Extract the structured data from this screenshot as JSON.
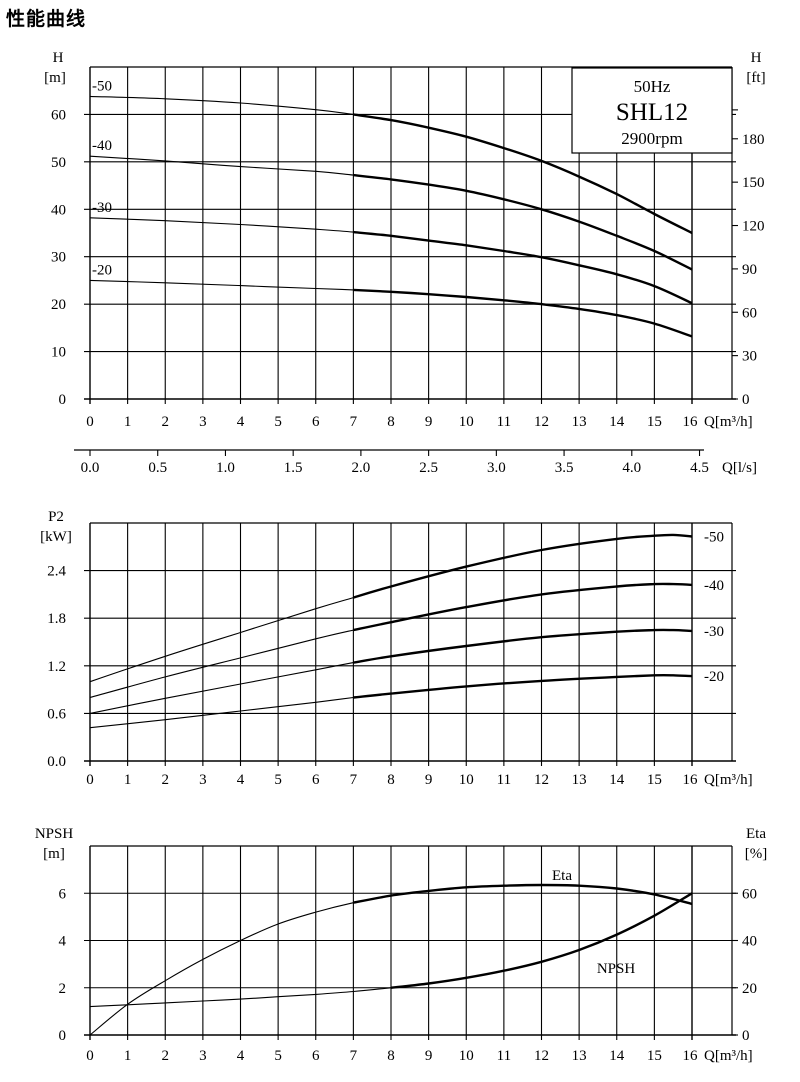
{
  "page_title": "性能曲线",
  "colors": {
    "line": "#000000",
    "background": "#ffffff"
  },
  "chart_data": [
    {
      "type": "line",
      "id": "head",
      "left_axis_title": "H",
      "left_axis_unit": "[m]",
      "right_axis_title": "H",
      "right_axis_unit": "[ft]",
      "x_unit_label": "Q[m³/h]",
      "x2_unit_label": "Q[l/s]",
      "xlim": [
        0,
        16
      ],
      "ylim": [
        0,
        70
      ],
      "x_ticks": [
        "0",
        "1",
        "2",
        "3",
        "4",
        "5",
        "6",
        "7",
        "8",
        "9",
        "10",
        "11",
        "12",
        "13",
        "14",
        "15",
        "16"
      ],
      "x2_ticks": [
        "0.0",
        "0.5",
        "1.0",
        "1.5",
        "2.0",
        "2.5",
        "3.0",
        "3.5",
        "4.0",
        "4.5"
      ],
      "y_ticks": [
        "0",
        "10",
        "20",
        "30",
        "40",
        "50",
        "60"
      ],
      "y2_ticks": [
        "0",
        "30",
        "60",
        "90",
        "120",
        "150",
        "180"
      ],
      "legend_box": {
        "freq": "50Hz",
        "model": "SHL12",
        "speed": "2900rpm"
      },
      "series": [
        {
          "name": "-50",
          "x": [
            0,
            2,
            4,
            6,
            7,
            8,
            9,
            10,
            11,
            12,
            13,
            14,
            15,
            16
          ],
          "y": [
            63.8,
            63.3,
            62.4,
            61.0,
            60.0,
            58.8,
            57.2,
            55.3,
            52.9,
            50.2,
            46.9,
            43.2,
            39.0,
            35.0
          ]
        },
        {
          "name": "-40",
          "x": [
            0,
            2,
            4,
            6,
            7,
            8,
            9,
            10,
            11,
            12,
            13,
            14,
            15,
            16
          ],
          "y": [
            51.2,
            50.2,
            49.0,
            48.0,
            47.2,
            46.3,
            45.2,
            43.9,
            42.1,
            40.0,
            37.4,
            34.4,
            31.2,
            27.3
          ]
        },
        {
          "name": "-30",
          "x": [
            0,
            2,
            4,
            6,
            7,
            8,
            9,
            10,
            11,
            12,
            13,
            14,
            15,
            16
          ],
          "y": [
            38.2,
            37.6,
            36.8,
            35.8,
            35.2,
            34.4,
            33.4,
            32.4,
            31.2,
            29.9,
            28.2,
            26.3,
            23.8,
            20.2
          ]
        },
        {
          "name": "-20",
          "x": [
            0,
            2,
            4,
            6,
            7,
            8,
            9,
            10,
            11,
            12,
            13,
            14,
            15,
            16
          ],
          "y": [
            25.0,
            24.5,
            23.9,
            23.3,
            23.0,
            22.6,
            22.1,
            21.5,
            20.8,
            20.0,
            19.0,
            17.7,
            15.9,
            13.2
          ]
        }
      ]
    },
    {
      "type": "line",
      "id": "power",
      "left_axis_title": "P2",
      "left_axis_unit": "[kW]",
      "x_unit_label": "Q[m³/h]",
      "xlim": [
        0,
        16
      ],
      "ylim": [
        0,
        3.0
      ],
      "x_ticks": [
        "0",
        "1",
        "2",
        "3",
        "4",
        "5",
        "6",
        "7",
        "8",
        "9",
        "10",
        "11",
        "12",
        "13",
        "14",
        "15",
        "16"
      ],
      "y_ticks": [
        "0.0",
        "0.6",
        "1.2",
        "1.8",
        "2.4"
      ],
      "series": [
        {
          "name": "-50",
          "x": [
            0,
            2,
            4,
            6,
            7,
            8,
            10,
            12,
            14,
            15,
            15.5,
            16
          ],
          "y": [
            1.0,
            1.32,
            1.62,
            1.92,
            2.06,
            2.2,
            2.45,
            2.66,
            2.8,
            2.84,
            2.85,
            2.83
          ]
        },
        {
          "name": "-40",
          "x": [
            0,
            2,
            4,
            6,
            7,
            8,
            10,
            12,
            14,
            15,
            15.5,
            16
          ],
          "y": [
            0.8,
            1.06,
            1.3,
            1.54,
            1.65,
            1.75,
            1.94,
            2.1,
            2.2,
            2.23,
            2.23,
            2.22
          ]
        },
        {
          "name": "-30",
          "x": [
            0,
            2,
            4,
            6,
            7,
            8,
            10,
            12,
            14,
            15,
            15.5,
            16
          ],
          "y": [
            0.6,
            0.79,
            0.97,
            1.15,
            1.24,
            1.32,
            1.45,
            1.56,
            1.63,
            1.65,
            1.65,
            1.64
          ]
        },
        {
          "name": "-20",
          "x": [
            0,
            2,
            4,
            6,
            7,
            8,
            10,
            12,
            14,
            15,
            15.5,
            16
          ],
          "y": [
            0.42,
            0.52,
            0.63,
            0.74,
            0.8,
            0.85,
            0.94,
            1.01,
            1.06,
            1.08,
            1.08,
            1.07
          ]
        }
      ]
    },
    {
      "type": "line",
      "id": "npsh_eta",
      "left_axis_title": "NPSH",
      "left_axis_unit": "[m]",
      "right_axis_title": "Eta",
      "right_axis_unit": "[%]",
      "x_unit_label": "Q[m³/h]",
      "xlim": [
        0,
        16
      ],
      "ylim": [
        0,
        8
      ],
      "y2lim": [
        0,
        80
      ],
      "x_ticks": [
        "0",
        "1",
        "2",
        "3",
        "4",
        "5",
        "6",
        "7",
        "8",
        "9",
        "10",
        "11",
        "12",
        "13",
        "14",
        "15",
        "16"
      ],
      "y_ticks": [
        "0",
        "2",
        "4",
        "6"
      ],
      "y2_ticks": [
        "0",
        "20",
        "40",
        "60"
      ],
      "series": [
        {
          "name": "NPSH",
          "axis": "left",
          "x": [
            0,
            1,
            2,
            3,
            4,
            5,
            6,
            7,
            8,
            9,
            10,
            11,
            12,
            13,
            14,
            15,
            16
          ],
          "y": [
            1.2,
            1.28,
            1.36,
            1.44,
            1.52,
            1.62,
            1.72,
            1.84,
            2.0,
            2.18,
            2.42,
            2.72,
            3.1,
            3.6,
            4.25,
            5.05,
            6.0
          ]
        },
        {
          "name": "Eta",
          "axis": "right",
          "x": [
            0,
            1,
            2,
            3,
            4,
            5,
            6,
            7,
            8,
            9,
            10,
            11,
            12,
            13,
            14,
            15,
            16
          ],
          "y": [
            0,
            13,
            23,
            32,
            40,
            47,
            52,
            56,
            59,
            61,
            62.5,
            63.2,
            63.5,
            63.2,
            62,
            59.5,
            55.5
          ]
        }
      ]
    }
  ]
}
